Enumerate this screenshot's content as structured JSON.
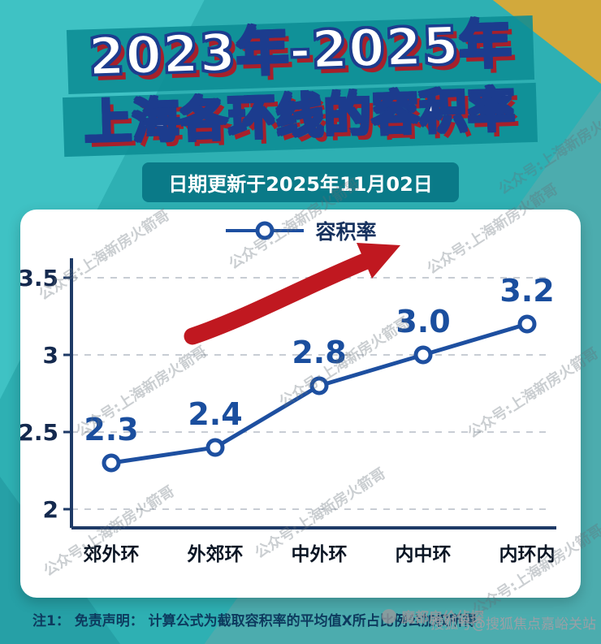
{
  "page": {
    "title_line1": "2023年-2025年",
    "title_line2": "上海各环线的容积率",
    "date_banner": "日期更新于2025年11月02日",
    "note": "注1： 免责声明： 计算公式为截取容积率的平均值X所占比例公加权所得",
    "watermark_repeat": "公众号:上海新房火箭哥",
    "watermark_center": "魔都房价侦探",
    "watermark_sohu": "搜狐号@搜狐焦点嘉峪关站"
  },
  "chart_data": {
    "type": "line",
    "title": "容积率",
    "categories": [
      "郊外环",
      "外郊环",
      "中外环",
      "内中环",
      "内环内"
    ],
    "series": [
      {
        "name": "容积率",
        "values": [
          2.3,
          2.4,
          2.8,
          3.0,
          3.2
        ],
        "labels": [
          "2.3",
          "2.4",
          "2.8",
          "3.0",
          "3.2"
        ]
      }
    ],
    "ylim": [
      2,
      3.5
    ],
    "yticks": [
      2,
      2.5,
      3,
      3.5
    ],
    "grid": "dashed-horizontal",
    "legend_position": "top-center",
    "annotations": [
      "upward-trend-arrow"
    ],
    "colors": {
      "line": "#1d4fa0",
      "marker_fill": "#ffffff",
      "label": "#1a4e9e",
      "arrow": "#c01820",
      "axis": "#1e3a66",
      "grid": "#c8cdd4",
      "tick_text": "#14294e",
      "xlabel_text": "#0a1524"
    }
  }
}
